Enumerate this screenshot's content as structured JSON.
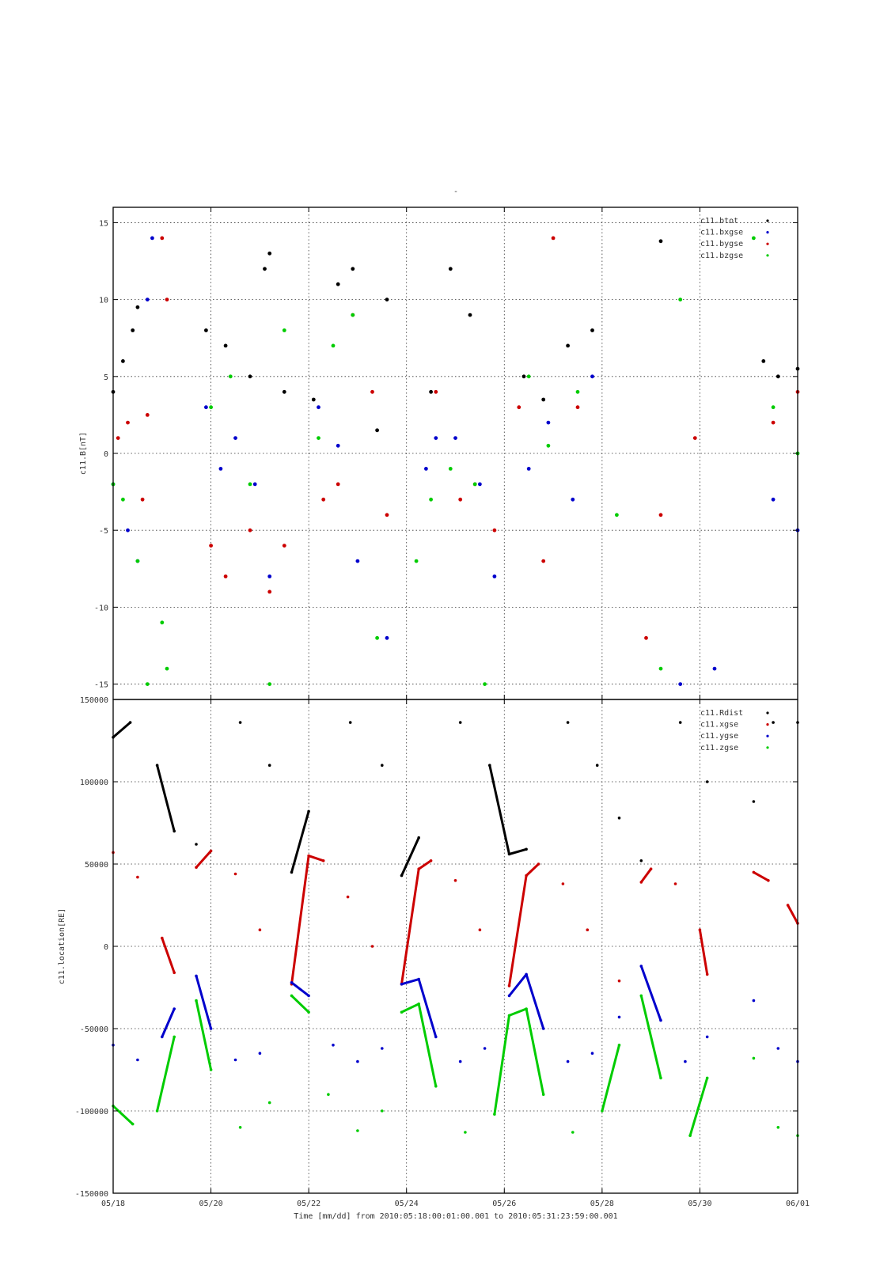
{
  "figure": {
    "top_title": "-",
    "xlabel": "Time [mm/dd]  from 2010:05:18:00:01:00.001  to  2010:05:31:23:59:00.001"
  },
  "chart_data": [
    {
      "type": "scatter",
      "panel": "magnetic-field",
      "ylabel": "c11.B[nT]",
      "xlabel": "",
      "x_unit": "days since 05/18",
      "xlim": [
        0,
        14
      ],
      "ylim": [
        -16,
        16
      ],
      "x_ticks": [
        0,
        2,
        4,
        6,
        8,
        10,
        12,
        14
      ],
      "x_tick_labels": [
        "05/18",
        "05/20",
        "05/22",
        "05/24",
        "05/26",
        "05/28",
        "05/30",
        "06/01"
      ],
      "y_ticks": [
        -15,
        -10,
        -5,
        0,
        5,
        10,
        15
      ],
      "y_tick_labels": [
        "-15",
        "-10",
        "-5",
        "0",
        "5",
        "10",
        "15"
      ],
      "grid": true,
      "legend_position": "top-right",
      "series": [
        {
          "name": "c11.btot",
          "color": "#000000",
          "x": [
            0.0,
            0.2,
            0.4,
            0.5,
            1.9,
            2.3,
            2.8,
            3.1,
            3.2,
            3.5,
            4.1,
            4.6,
            4.9,
            5.4,
            5.6,
            6.5,
            6.9,
            7.3,
            8.4,
            8.8,
            9.3,
            9.8,
            11.2,
            13.3,
            13.6,
            14.0
          ],
          "y": [
            4.0,
            6.0,
            8.0,
            9.5,
            8.0,
            7.0,
            5.0,
            12.0,
            13.0,
            4.0,
            3.5,
            11.0,
            12.0,
            1.5,
            10.0,
            4.0,
            12.0,
            9.0,
            5.0,
            3.5,
            7.0,
            8.0,
            13.8,
            6.0,
            5.0,
            5.5
          ]
        },
        {
          "name": "c11.bxgse",
          "color": "#0000cc",
          "x": [
            0.0,
            0.3,
            0.5,
            0.7,
            0.8,
            1.9,
            2.2,
            2.5,
            2.9,
            3.2,
            4.2,
            4.6,
            5.0,
            5.6,
            6.4,
            6.6,
            7.0,
            7.5,
            7.8,
            8.5,
            8.9,
            9.4,
            9.8,
            11.6,
            12.3,
            13.5,
            14.0
          ],
          "y": [
            -2.0,
            -5.0,
            -7.0,
            10.0,
            14.0,
            3.0,
            -1.0,
            1.0,
            -2.0,
            -8.0,
            3.0,
            0.5,
            -7.0,
            -12.0,
            -1.0,
            1.0,
            1.0,
            -2.0,
            -8.0,
            -1.0,
            2.0,
            -3.0,
            5.0,
            -15.0,
            -14.0,
            -3.0,
            -5.0
          ]
        },
        {
          "name": "c11.bygse",
          "color": "#cc0000",
          "x": [
            0.1,
            0.3,
            0.6,
            0.7,
            1.0,
            1.1,
            2.0,
            2.3,
            2.8,
            3.2,
            3.5,
            4.3,
            4.6,
            4.9,
            5.3,
            5.6,
            6.6,
            7.1,
            7.4,
            7.8,
            8.3,
            8.8,
            9.0,
            9.5,
            10.9,
            11.2,
            11.9,
            13.5,
            14.0
          ],
          "y": [
            1.0,
            2.0,
            -3.0,
            2.5,
            14.0,
            10.0,
            -6.0,
            -8.0,
            -5.0,
            -9.0,
            -6.0,
            -3.0,
            -2.0,
            9.0,
            4.0,
            -4.0,
            4.0,
            -3.0,
            -2.0,
            -5.0,
            3.0,
            -7.0,
            14.0,
            3.0,
            -12.0,
            -4.0,
            1.0,
            2.0,
            4.0
          ]
        },
        {
          "name": "c11.bzgse",
          "color": "#00cc00",
          "x": [
            0.0,
            0.2,
            0.5,
            0.7,
            1.0,
            1.1,
            2.0,
            2.4,
            2.8,
            3.2,
            3.5,
            4.2,
            4.5,
            4.9,
            5.4,
            6.2,
            6.5,
            6.9,
            7.4,
            7.6,
            8.5,
            8.9,
            9.5,
            10.3,
            11.2,
            11.6,
            13.1,
            13.5,
            14.0
          ],
          "y": [
            -2.0,
            -3.0,
            -7.0,
            -15.0,
            -11.0,
            -14.0,
            3.0,
            5.0,
            -2.0,
            -15.0,
            8.0,
            1.0,
            7.0,
            9.0,
            -12.0,
            -7.0,
            -3.0,
            -1.0,
            -2.0,
            -15.0,
            5.0,
            0.5,
            4.0,
            -4.0,
            -14.0,
            10.0,
            14.0,
            3.0,
            0.0
          ]
        }
      ]
    },
    {
      "type": "scatter",
      "panel": "location",
      "ylabel": "c11.location[RE]",
      "xlabel": "",
      "x_unit": "days since 05/18",
      "xlim": [
        0,
        14
      ],
      "ylim": [
        -150000,
        150000
      ],
      "x_ticks": [
        0,
        2,
        4,
        6,
        8,
        10,
        12,
        14
      ],
      "x_tick_labels": [
        "05/18",
        "05/20",
        "05/22",
        "05/24",
        "05/26",
        "05/28",
        "05/30",
        "06/01"
      ],
      "y_ticks": [
        -150000,
        -100000,
        -50000,
        0,
        50000,
        100000,
        150000
      ],
      "y_tick_labels": [
        "-150000",
        "-100000",
        "-50000",
        "0",
        "50000",
        "100000",
        "150000"
      ],
      "grid": true,
      "legend_position": "top-right",
      "series": [
        {
          "name": "c11.Rdist",
          "color": "#000000",
          "x": [
            0.0,
            0.35,
            0.9,
            1.25,
            1.7,
            2.6,
            3.2,
            3.65,
            4.0,
            4.85,
            5.5,
            5.9,
            6.25,
            7.1,
            7.7,
            8.1,
            8.45,
            9.3,
            9.9,
            10.35,
            10.8,
            11.6,
            12.15,
            13.1,
            13.5,
            14.0
          ],
          "y": [
            127000,
            136000,
            110000,
            70000,
            62000,
            136000,
            110000,
            45000,
            82000,
            136000,
            110000,
            43000,
            66000,
            136000,
            110000,
            56000,
            59000,
            136000,
            110000,
            78000,
            52000,
            136000,
            100000,
            88000,
            136000,
            136000
          ]
        },
        {
          "name": "c11.xgse",
          "color": "#cc0000",
          "x": [
            0.0,
            0.5,
            1.0,
            1.25,
            1.7,
            2.0,
            2.5,
            3.0,
            3.65,
            4.0,
            4.3,
            4.8,
            5.3,
            5.9,
            6.25,
            6.5,
            7.0,
            7.5,
            8.1,
            8.45,
            8.7,
            9.2,
            9.7,
            10.35,
            10.8,
            11.0,
            11.5,
            12.0,
            12.15,
            13.1,
            13.4,
            13.8,
            14.0
          ],
          "y": [
            57000,
            42000,
            5000,
            -16000,
            48000,
            58000,
            44000,
            10000,
            -23000,
            55000,
            52000,
            30000,
            0,
            -23000,
            47000,
            52000,
            40000,
            10000,
            -24000,
            43000,
            50000,
            38000,
            10000,
            -21000,
            39000,
            47000,
            38000,
            10000,
            -17000,
            45000,
            40000,
            25000,
            14000
          ]
        },
        {
          "name": "c11.ygse",
          "color": "#0000cc",
          "x": [
            0.0,
            0.5,
            1.0,
            1.25,
            1.7,
            2.0,
            2.5,
            3.0,
            3.65,
            4.0,
            4.5,
            5.0,
            5.5,
            5.9,
            6.25,
            6.6,
            7.1,
            7.6,
            8.1,
            8.45,
            8.8,
            9.3,
            9.8,
            10.35,
            10.8,
            11.2,
            11.7,
            12.15,
            13.1,
            13.6,
            14.0
          ],
          "y": [
            -60000,
            -69000,
            -55000,
            -38000,
            -18000,
            -50000,
            -69000,
            -65000,
            -22000,
            -30000,
            -60000,
            -70000,
            -62000,
            -23000,
            -20000,
            -55000,
            -70000,
            -62000,
            -30000,
            -17000,
            -50000,
            -70000,
            -65000,
            -43000,
            -12000,
            -45000,
            -70000,
            -55000,
            -33000,
            -62000,
            -70000
          ]
        },
        {
          "name": "c11.zgse",
          "color": "#00cc00",
          "x": [
            0.0,
            0.4,
            0.9,
            1.25,
            1.7,
            2.0,
            2.6,
            3.2,
            3.65,
            4.0,
            4.4,
            5.0,
            5.5,
            5.9,
            6.25,
            6.6,
            7.2,
            7.8,
            8.1,
            8.45,
            8.8,
            9.4,
            10.0,
            10.35,
            10.8,
            11.2,
            11.8,
            12.15,
            13.1,
            13.6,
            14.0
          ],
          "y": [
            -97000,
            -108000,
            -100000,
            -55000,
            -33000,
            -75000,
            -110000,
            -95000,
            -30000,
            -40000,
            -90000,
            -112000,
            -100000,
            -40000,
            -35000,
            -85000,
            -113000,
            -102000,
            -42000,
            -38000,
            -90000,
            -113000,
            -100000,
            -60000,
            -30000,
            -80000,
            -115000,
            -80000,
            -68000,
            -110000,
            -115000
          ]
        }
      ]
    }
  ]
}
